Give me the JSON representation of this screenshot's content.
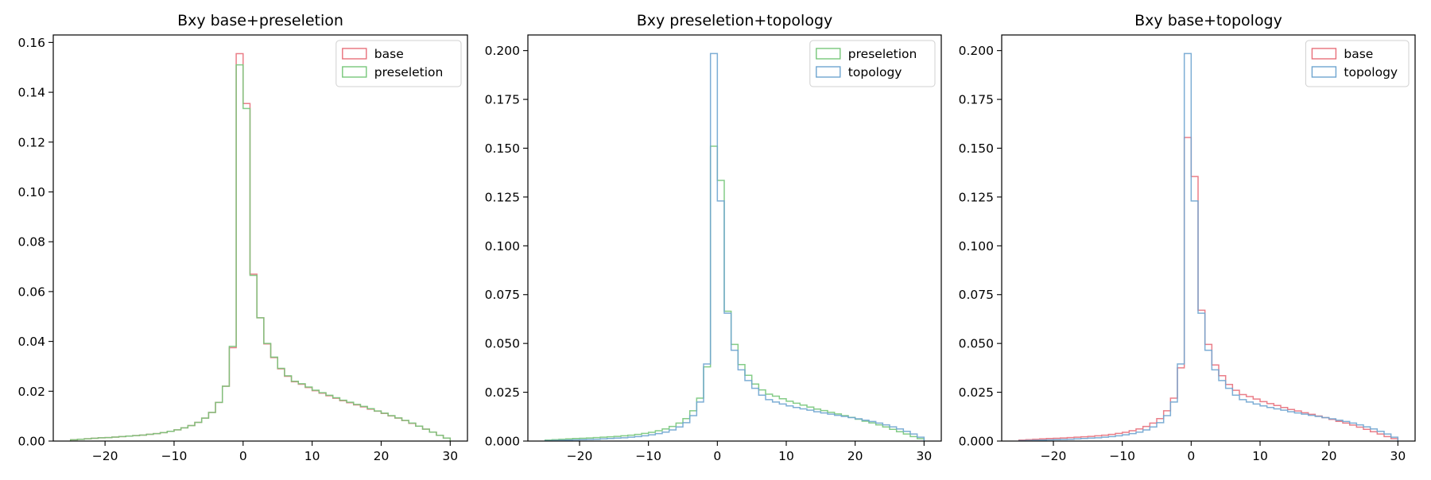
{
  "chart_data": [
    {
      "type": "histogram-step",
      "title": "Bxy base+preseletion",
      "xlim": [
        -27.5,
        32.5
      ],
      "ylim": [
        0,
        0.163
      ],
      "xticks": [
        -20,
        -10,
        0,
        10,
        20,
        30
      ],
      "yticks": [
        0.0,
        0.02,
        0.04,
        0.06,
        0.08,
        0.1,
        0.12,
        0.14,
        0.16
      ],
      "ytick_labels": [
        "0.00",
        "0.02",
        "0.04",
        "0.06",
        "0.08",
        "0.10",
        "0.12",
        "0.14",
        "0.16"
      ],
      "legend": "top-right",
      "bin_edges": [
        -25,
        -24,
        -23,
        -22,
        -21,
        -20,
        -19,
        -18,
        -17,
        -16,
        -15,
        -14,
        -13,
        -12,
        -11,
        -10,
        -9,
        -8,
        -7,
        -6,
        -5,
        -4,
        -3,
        -2,
        -1,
        0,
        1,
        2,
        3,
        4,
        5,
        6,
        7,
        8,
        9,
        10,
        11,
        12,
        13,
        14,
        15,
        16,
        17,
        18,
        19,
        20,
        21,
        22,
        23,
        24,
        25,
        26,
        27,
        28,
        29,
        30
      ],
      "series": [
        {
          "name": "base",
          "color": "#e8707b",
          "values": [
            0.0005,
            0.0007,
            0.0009,
            0.0011,
            0.0013,
            0.0014,
            0.0016,
            0.0018,
            0.002,
            0.0022,
            0.0024,
            0.0027,
            0.003,
            0.0034,
            0.0039,
            0.0045,
            0.0053,
            0.0062,
            0.0075,
            0.0092,
            0.0115,
            0.0155,
            0.022,
            0.0375,
            0.1555,
            0.1355,
            0.067,
            0.0495,
            0.039,
            0.0335,
            0.029,
            0.026,
            0.0238,
            0.0228,
            0.0215,
            0.0202,
            0.0192,
            0.0182,
            0.0172,
            0.0162,
            0.0154,
            0.0145,
            0.0137,
            0.0128,
            0.012,
            0.0111,
            0.0101,
            0.0092,
            0.0082,
            0.0071,
            0.006,
            0.0048,
            0.0036,
            0.0023,
            0.0012
          ]
        },
        {
          "name": "preseletion",
          "color": "#77c77a",
          "values": [
            0.0005,
            0.0007,
            0.0009,
            0.0011,
            0.0013,
            0.0014,
            0.0016,
            0.0018,
            0.002,
            0.0022,
            0.0024,
            0.0027,
            0.003,
            0.0034,
            0.0039,
            0.0045,
            0.0053,
            0.0062,
            0.0075,
            0.0092,
            0.0115,
            0.0155,
            0.022,
            0.038,
            0.151,
            0.1335,
            0.0665,
            0.0495,
            0.0392,
            0.0337,
            0.0292,
            0.0262,
            0.024,
            0.023,
            0.0217,
            0.0204,
            0.0194,
            0.0184,
            0.0174,
            0.0164,
            0.0156,
            0.0147,
            0.0139,
            0.013,
            0.0121,
            0.0112,
            0.0102,
            0.0093,
            0.0083,
            0.0072,
            0.006,
            0.0048,
            0.0036,
            0.0023,
            0.0012
          ]
        }
      ]
    },
    {
      "type": "histogram-step",
      "title": "Bxy preseletion+topology",
      "xlim": [
        -27.5,
        32.5
      ],
      "ylim": [
        0,
        0.208
      ],
      "xticks": [
        -20,
        -10,
        0,
        10,
        20,
        30
      ],
      "yticks": [
        0.0,
        0.025,
        0.05,
        0.075,
        0.1,
        0.125,
        0.15,
        0.175,
        0.2
      ],
      "ytick_labels": [
        "0.000",
        "0.025",
        "0.050",
        "0.075",
        "0.100",
        "0.125",
        "0.150",
        "0.175",
        "0.200"
      ],
      "legend": "top-right",
      "bin_edges": [
        -25,
        -24,
        -23,
        -22,
        -21,
        -20,
        -19,
        -18,
        -17,
        -16,
        -15,
        -14,
        -13,
        -12,
        -11,
        -10,
        -9,
        -8,
        -7,
        -6,
        -5,
        -4,
        -3,
        -2,
        -1,
        0,
        1,
        2,
        3,
        4,
        5,
        6,
        7,
        8,
        9,
        10,
        11,
        12,
        13,
        14,
        15,
        16,
        17,
        18,
        19,
        20,
        21,
        22,
        23,
        24,
        25,
        26,
        27,
        28,
        29,
        30
      ],
      "series": [
        {
          "name": "preseletion",
          "color": "#77c77a",
          "values": [
            0.0005,
            0.0007,
            0.0009,
            0.0011,
            0.0013,
            0.0014,
            0.0016,
            0.0018,
            0.002,
            0.0022,
            0.0024,
            0.0027,
            0.003,
            0.0034,
            0.0039,
            0.0045,
            0.0053,
            0.0062,
            0.0075,
            0.0092,
            0.0115,
            0.0155,
            0.022,
            0.038,
            0.151,
            0.1335,
            0.0665,
            0.0495,
            0.0392,
            0.0337,
            0.0292,
            0.0262,
            0.024,
            0.023,
            0.0217,
            0.0204,
            0.0194,
            0.0184,
            0.0174,
            0.0164,
            0.0156,
            0.0147,
            0.0139,
            0.013,
            0.0121,
            0.0112,
            0.0102,
            0.0093,
            0.0083,
            0.0072,
            0.006,
            0.0048,
            0.0036,
            0.0023,
            0.0012
          ]
        },
        {
          "name": "topology",
          "color": "#6fa5d0",
          "values": [
            0.0002,
            0.0003,
            0.0004,
            0.0005,
            0.0006,
            0.0007,
            0.0008,
            0.0009,
            0.0011,
            0.0013,
            0.0015,
            0.0017,
            0.002,
            0.0023,
            0.0027,
            0.0032,
            0.0038,
            0.0046,
            0.0057,
            0.0072,
            0.0094,
            0.013,
            0.02,
            0.0395,
            0.1985,
            0.123,
            0.0655,
            0.0465,
            0.0365,
            0.031,
            0.027,
            0.0235,
            0.0212,
            0.02,
            0.019,
            0.018,
            0.0172,
            0.0165,
            0.0158,
            0.015,
            0.0144,
            0.0138,
            0.0132,
            0.0126,
            0.012,
            0.0114,
            0.0107,
            0.01,
            0.0092,
            0.0083,
            0.0073,
            0.0062,
            0.005,
            0.0036,
            0.002
          ]
        }
      ]
    },
    {
      "type": "histogram-step",
      "title": "Bxy base+topology",
      "xlim": [
        -27.5,
        32.5
      ],
      "ylim": [
        0,
        0.208
      ],
      "xticks": [
        -20,
        -10,
        0,
        10,
        20,
        30
      ],
      "yticks": [
        0.0,
        0.025,
        0.05,
        0.075,
        0.1,
        0.125,
        0.15,
        0.175,
        0.2
      ],
      "ytick_labels": [
        "0.000",
        "0.025",
        "0.050",
        "0.075",
        "0.100",
        "0.125",
        "0.150",
        "0.175",
        "0.200"
      ],
      "legend": "top-right",
      "bin_edges": [
        -25,
        -24,
        -23,
        -22,
        -21,
        -20,
        -19,
        -18,
        -17,
        -16,
        -15,
        -14,
        -13,
        -12,
        -11,
        -10,
        -9,
        -8,
        -7,
        -6,
        -5,
        -4,
        -3,
        -2,
        -1,
        0,
        1,
        2,
        3,
        4,
        5,
        6,
        7,
        8,
        9,
        10,
        11,
        12,
        13,
        14,
        15,
        16,
        17,
        18,
        19,
        20,
        21,
        22,
        23,
        24,
        25,
        26,
        27,
        28,
        29,
        30
      ],
      "series": [
        {
          "name": "base",
          "color": "#e8707b",
          "values": [
            0.0005,
            0.0007,
            0.0009,
            0.0011,
            0.0013,
            0.0014,
            0.0016,
            0.0018,
            0.002,
            0.0022,
            0.0024,
            0.0027,
            0.003,
            0.0034,
            0.0039,
            0.0045,
            0.0053,
            0.0062,
            0.0075,
            0.0092,
            0.0115,
            0.0155,
            0.022,
            0.0375,
            0.1555,
            0.1355,
            0.067,
            0.0495,
            0.039,
            0.0335,
            0.029,
            0.026,
            0.0238,
            0.0228,
            0.0215,
            0.0202,
            0.0192,
            0.0182,
            0.0172,
            0.0162,
            0.0154,
            0.0145,
            0.0137,
            0.0128,
            0.012,
            0.0111,
            0.0101,
            0.0092,
            0.0082,
            0.0071,
            0.006,
            0.0048,
            0.0036,
            0.0023,
            0.0012
          ]
        },
        {
          "name": "topology",
          "color": "#6fa5d0",
          "values": [
            0.0002,
            0.0003,
            0.0004,
            0.0005,
            0.0006,
            0.0007,
            0.0008,
            0.0009,
            0.0011,
            0.0013,
            0.0015,
            0.0017,
            0.002,
            0.0023,
            0.0027,
            0.0032,
            0.0038,
            0.0046,
            0.0057,
            0.0072,
            0.0094,
            0.013,
            0.02,
            0.0395,
            0.1985,
            0.123,
            0.0655,
            0.0465,
            0.0365,
            0.031,
            0.027,
            0.0235,
            0.0212,
            0.02,
            0.019,
            0.018,
            0.0172,
            0.0165,
            0.0158,
            0.015,
            0.0144,
            0.0138,
            0.0132,
            0.0126,
            0.012,
            0.0114,
            0.0107,
            0.01,
            0.0092,
            0.0083,
            0.0073,
            0.0062,
            0.005,
            0.0036,
            0.002
          ]
        }
      ]
    }
  ]
}
